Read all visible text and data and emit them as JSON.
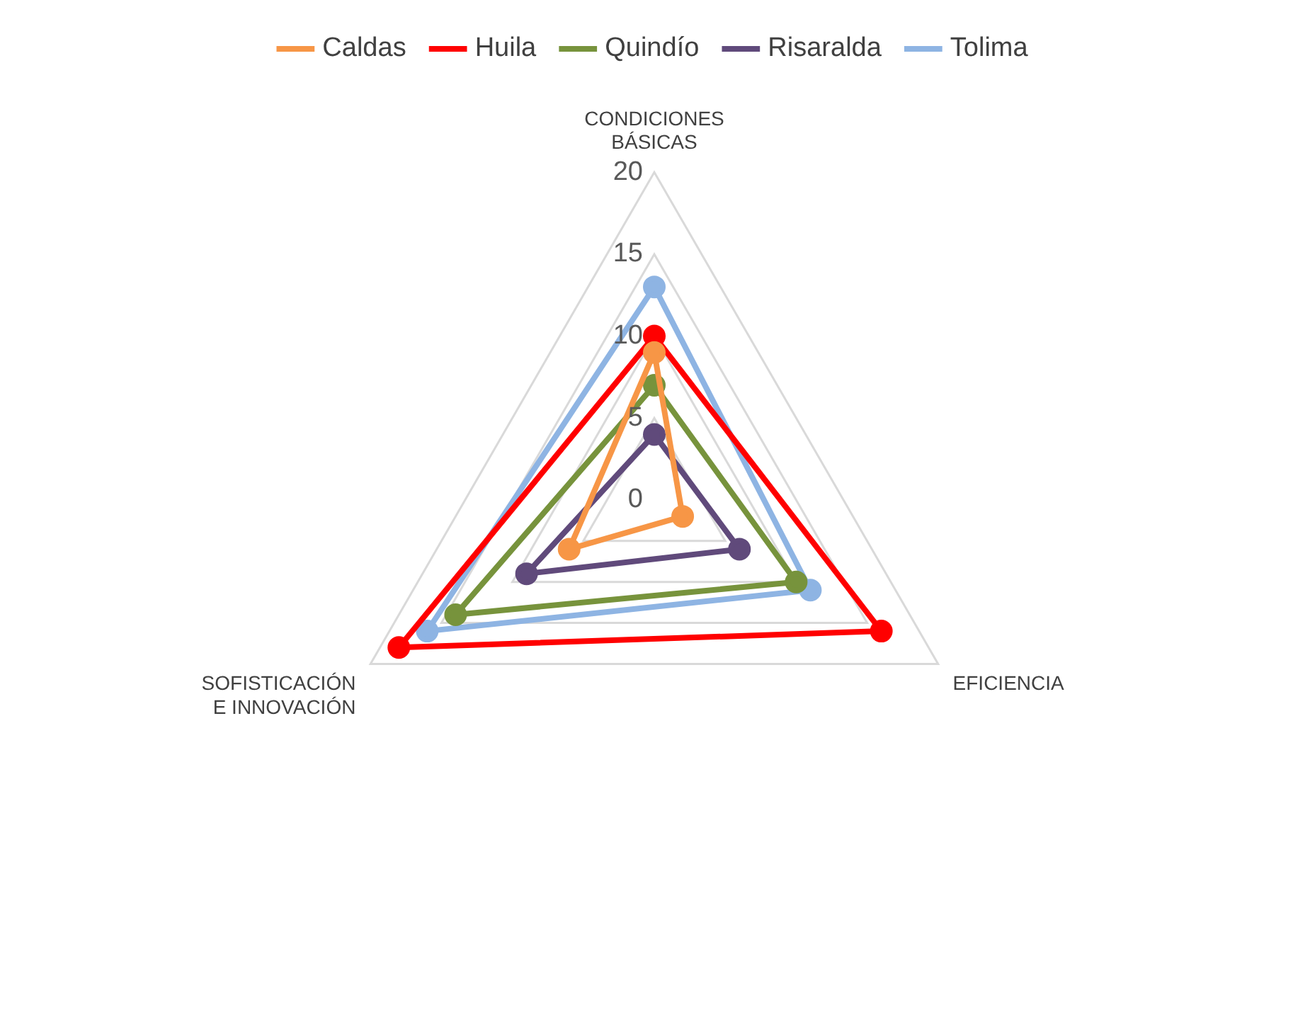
{
  "chart_data": {
    "type": "radar",
    "categories": [
      "CONDICIONES BÁSICAS",
      "EFICIENCIA",
      "SOFISTICACIÓN E INNOVACIÓN"
    ],
    "series": [
      {
        "name": "Caldas",
        "color": "#f79646",
        "values": [
          9,
          2,
          6
        ]
      },
      {
        "name": "Huila",
        "color": "#ff0000",
        "values": [
          10,
          16,
          18
        ]
      },
      {
        "name": "Quindío",
        "color": "#77933c",
        "values": [
          7,
          10,
          14
        ]
      },
      {
        "name": "Risaralda",
        "color": "#604a7b",
        "values": [
          4,
          6,
          9
        ]
      },
      {
        "name": "Tolima",
        "color": "#8eb4e3",
        "values": [
          13,
          11,
          16
        ]
      }
    ],
    "ylim": [
      0,
      20
    ],
    "yticks": [
      0,
      5,
      10,
      15,
      20
    ],
    "grid": true,
    "legend": "top",
    "marker": "circle",
    "line_style": "solid"
  }
}
